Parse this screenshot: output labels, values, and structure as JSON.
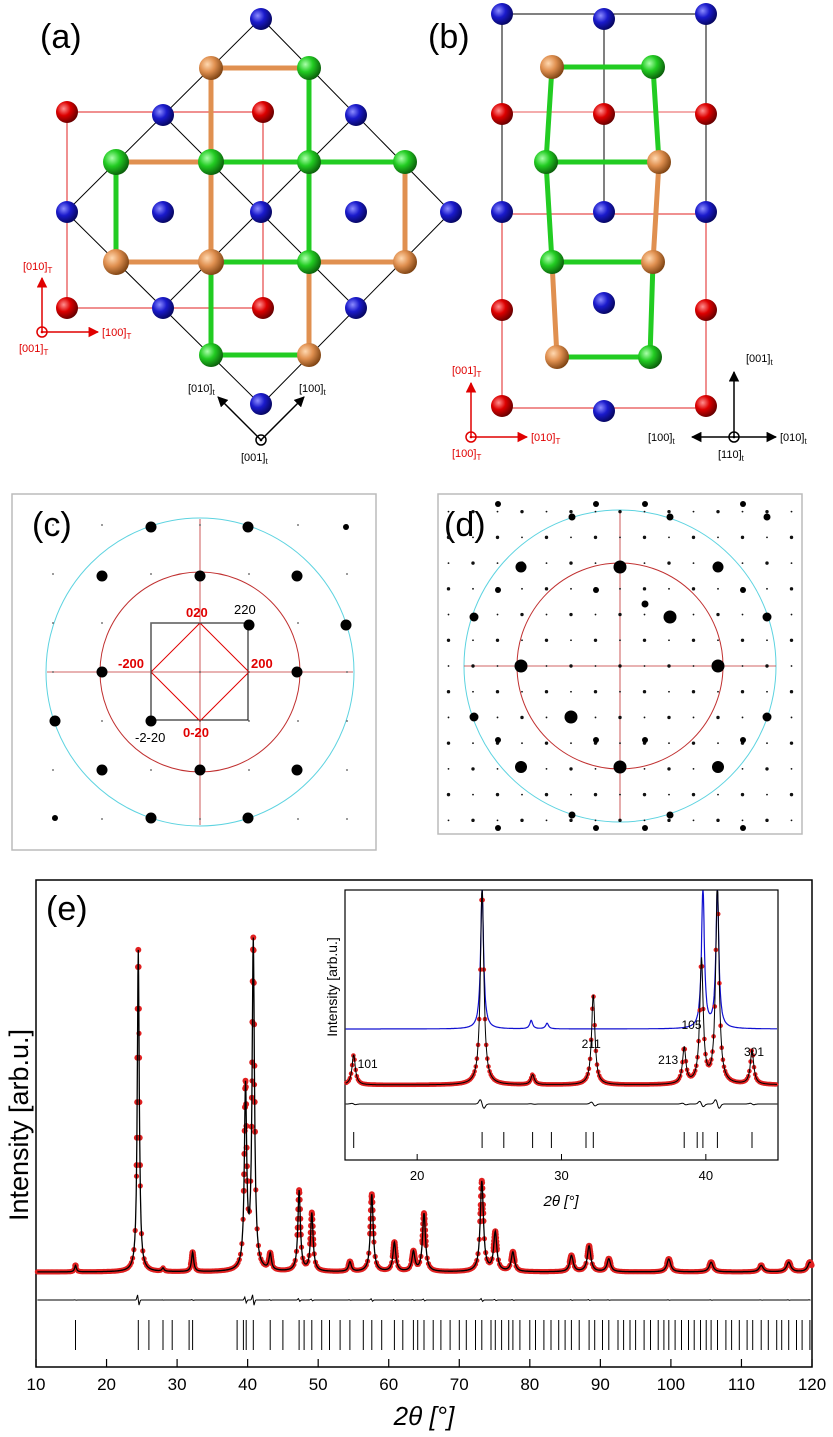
{
  "panels": {
    "a": {
      "label": "(a)",
      "tetragonal_axes": {
        "x": "[100]",
        "y": "[010]",
        "z": "[001]",
        "sub": "T",
        "color": "#e00000"
      },
      "small_t_axes": {
        "x": "[100]",
        "y": "[010]",
        "z": "[001]",
        "sub": "t",
        "color": "#000000"
      }
    },
    "b": {
      "label": "(b)",
      "tetragonal_axes": {
        "x": "[010]",
        "y": "[001]",
        "z": "[100]",
        "sub": "T",
        "color": "#e00000"
      },
      "small_t_axes": {
        "x": "[010]",
        "y": "[001]",
        "x_neg": "[100]",
        "z": "[110]",
        "sub": "t",
        "color": "#000000"
      }
    },
    "c": {
      "label": "(c)",
      "index_labels_red": [
        "020",
        "200",
        "-200",
        "0-20"
      ],
      "index_labels_black": [
        "220",
        "-2-20"
      ]
    },
    "d": {
      "label": "(d)"
    },
    "e": {
      "label": "(e)"
    }
  },
  "colors": {
    "blue_atom": "#1a1acc",
    "red_atom": "#dd0000",
    "green_atom": "#22cc22",
    "orange_atom": "#e09050",
    "red_circle": "#c03030",
    "cyan_circle": "#5dd3e0",
    "obs": "#e02020",
    "calc": "#000000",
    "inset_blue": "#1010d0"
  },
  "chart_data": {
    "type": "line",
    "title": "",
    "xlabel": "2θ [°]",
    "ylabel": "Intensity [arb.u.]",
    "xlim": [
      10,
      120
    ],
    "xticks": [
      10,
      20,
      30,
      40,
      50,
      60,
      70,
      80,
      90,
      100,
      110,
      120
    ],
    "peaks_2theta": [
      15.6,
      24.5,
      28.0,
      32.2,
      39.7,
      40.8,
      43.2,
      47.3,
      49.1,
      54.5,
      57.6,
      60.8,
      63.5,
      65.0,
      73.2,
      75.1,
      77.6,
      85.9,
      88.4,
      91.2,
      99.7,
      105.7,
      112.8,
      116.7,
      119.7
    ],
    "peaks_intensity": [
      0.02,
      1.0,
      0.01,
      0.06,
      0.56,
      1.02,
      0.05,
      0.25,
      0.18,
      0.03,
      0.24,
      0.09,
      0.06,
      0.18,
      0.28,
      0.12,
      0.06,
      0.05,
      0.08,
      0.04,
      0.04,
      0.03,
      0.02,
      0.03,
      0.03
    ],
    "reflection_ticks": [
      15.6,
      24.5,
      26.0,
      28.0,
      29.3,
      31.7,
      32.2,
      38.5,
      39.4,
      39.8,
      40.8,
      43.2,
      45.0,
      47.3,
      48.0,
      49.1,
      50.5,
      51.6,
      53.1,
      54.5,
      56.4,
      57.6,
      59.0,
      60.8,
      62.0,
      63.5,
      64.1,
      65.0,
      66.3,
      67.4,
      68.7,
      70.0,
      71.0,
      72.3,
      73.2,
      74.5,
      75.1,
      76.0,
      77.0,
      77.6,
      78.6,
      80.0,
      80.8,
      82.0,
      83.0,
      84.1,
      85.0,
      85.9,
      87.0,
      88.4,
      89.2,
      90.3,
      91.2,
      92.5,
      93.3,
      94.2,
      95.0,
      96.2,
      97.1,
      98.2,
      99.0,
      99.7,
      100.6,
      101.5,
      102.5,
      103.3,
      104.2,
      105.0,
      105.7,
      106.6,
      107.8,
      108.6,
      109.7,
      110.8,
      111.6,
      112.8,
      113.8,
      115.0,
      115.7,
      116.7,
      117.8,
      118.6,
      119.7
    ],
    "inset": {
      "xlabel": "2θ [°]",
      "ylabel": "Intensity [arb.u.]",
      "xlim": [
        15,
        45
      ],
      "xticks": [
        20,
        30,
        40
      ],
      "labels": [
        "101",
        "211",
        "213",
        "105",
        "301"
      ],
      "label_2theta": [
        15.6,
        32.2,
        38.5,
        39.7,
        43.2
      ],
      "obs_peaks_2theta": [
        15.6,
        24.5,
        28.0,
        32.2,
        38.5,
        39.7,
        40.8,
        43.2
      ],
      "obs_peaks_intensity": [
        0.15,
        1.0,
        0.05,
        0.45,
        0.18,
        0.62,
        1.0,
        0.17
      ],
      "blue_peaks_2theta": [
        24.5,
        27.9,
        29.0,
        39.8,
        40.8
      ],
      "blue_peaks_intensity": [
        1.0,
        0.06,
        0.04,
        1.0,
        1.0
      ],
      "reflection_ticks": [
        15.6,
        24.5,
        26.0,
        28.0,
        29.3,
        31.7,
        32.2,
        38.5,
        39.4,
        39.8,
        40.8,
        43.2
      ]
    }
  }
}
